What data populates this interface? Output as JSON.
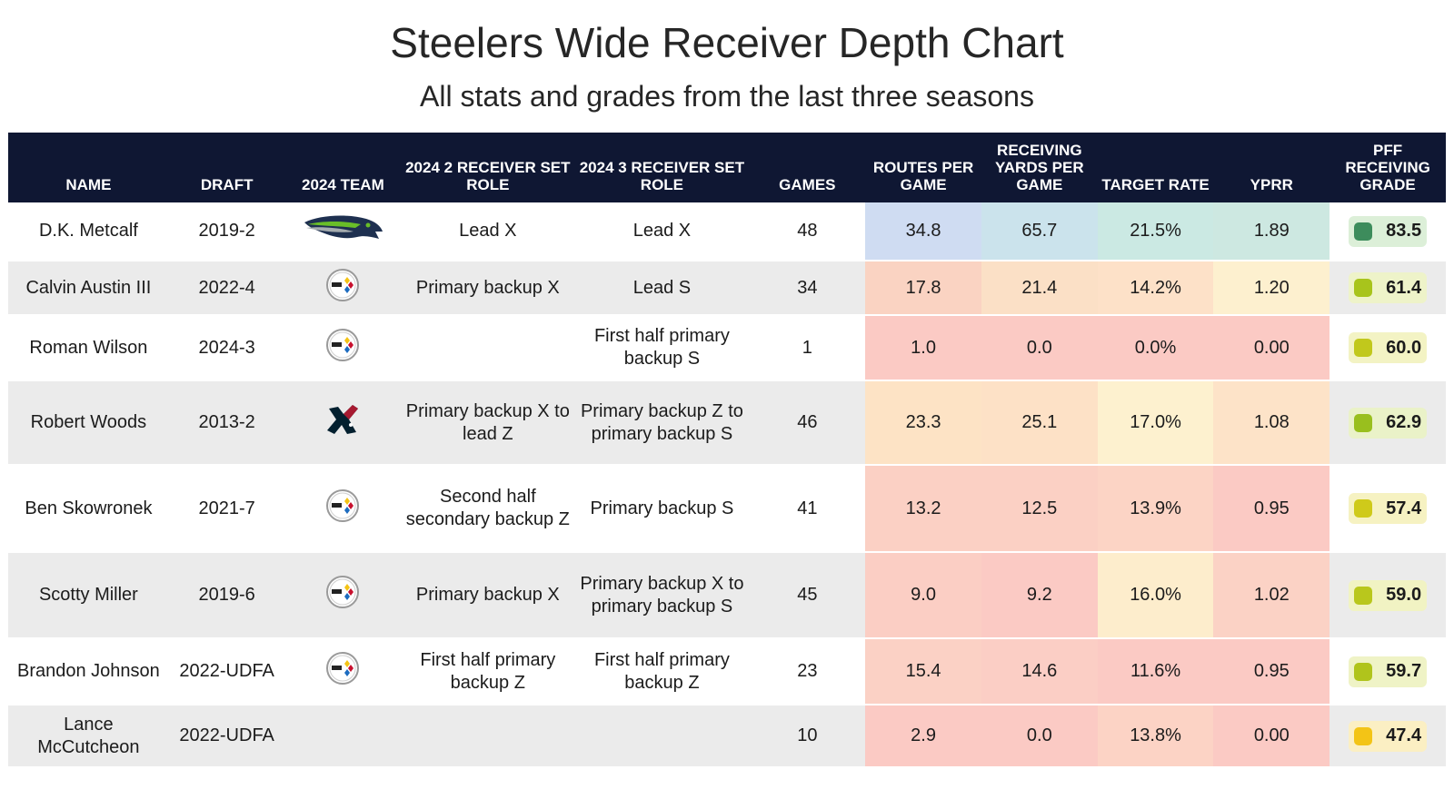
{
  "title": "Steelers Wide Receiver Depth Chart",
  "subtitle": "All stats and grades from the last three seasons",
  "headers": {
    "name": "NAME",
    "draft": "DRAFT",
    "team": "2024 TEAM",
    "role2": "2024 2 RECEIVER SET ROLE",
    "role3": "2024 3 RECEIVER SET ROLE",
    "games": "GAMES",
    "routes": "ROUTES PER GAME",
    "yards": "RECEIVING YARDS PER GAME",
    "target": "TARGET RATE",
    "yprr": "YPRR",
    "grade": "PFF RECEIVING GRADE"
  },
  "chart_data": {
    "type": "table",
    "rows": [
      {
        "name": "D.K. Metcalf",
        "draft": "2019-2",
        "team_icon": "seahawks-logo-icon",
        "role2": "Lead X",
        "role3": "Lead X",
        "games": "48",
        "routes": "34.8",
        "yards": "65.7",
        "target": "21.5%",
        "yprr": "1.89",
        "grade": "83.5"
      },
      {
        "name": "Calvin Austin III",
        "draft": "2022-4",
        "team_icon": "steelers-logo-icon",
        "role2": "Primary backup X",
        "role3": "Lead S",
        "games": "34",
        "routes": "17.8",
        "yards": "21.4",
        "target": "14.2%",
        "yprr": "1.20",
        "grade": "61.4"
      },
      {
        "name": "Roman Wilson",
        "draft": "2024-3",
        "team_icon": "steelers-logo-icon",
        "role2": "",
        "role3": "First half primary backup S",
        "games": "1",
        "routes": "1.0",
        "yards": "0.0",
        "target": "0.0%",
        "yprr": "0.00",
        "grade": "60.0"
      },
      {
        "name": "Robert Woods",
        "draft": "2013-2",
        "team_icon": "texans-logo-icon",
        "role2": "Primary backup X to lead Z",
        "role3": "Primary backup Z to primary backup S",
        "games": "46",
        "routes": "23.3",
        "yards": "25.1",
        "target": "17.0%",
        "yprr": "1.08",
        "grade": "62.9"
      },
      {
        "name": "Ben Skowronek",
        "draft": "2021-7",
        "team_icon": "steelers-logo-icon",
        "role2": "Second half secondary backup Z",
        "role3": "Primary backup S",
        "games": "41",
        "routes": "13.2",
        "yards": "12.5",
        "target": "13.9%",
        "yprr": "0.95",
        "grade": "57.4"
      },
      {
        "name": "Scotty Miller",
        "draft": "2019-6",
        "team_icon": "steelers-logo-icon",
        "role2": "Primary backup X",
        "role3": "Primary backup X to primary backup S",
        "games": "45",
        "routes": "9.0",
        "yards": "9.2",
        "target": "16.0%",
        "yprr": "1.02",
        "grade": "59.0"
      },
      {
        "name": "Brandon Johnson",
        "draft": "2022-UDFA",
        "team_icon": "steelers-logo-icon",
        "role2": "First half primary backup Z",
        "role3": "First half primary backup Z",
        "games": "23",
        "routes": "15.4",
        "yards": "14.6",
        "target": "11.6%",
        "yprr": "0.95",
        "grade": "59.7"
      },
      {
        "name": "Lance McCutcheon",
        "draft": "2022-UDFA",
        "team_icon": "",
        "role2": "",
        "role3": "",
        "games": "10",
        "routes": "2.9",
        "yards": "0.0",
        "target": "13.8%",
        "yprr": "0.00",
        "grade": "47.4"
      }
    ]
  },
  "heat_colors": [
    {
      "routes": "#cfdcf2",
      "yards": "#cbe3ec",
      "target": "#cbe9e3",
      "yprr": "#cde8e1",
      "grade_bg": "#dcefd8",
      "grade_dot": "#3d8c5c"
    },
    {
      "routes": "#fad3c2",
      "yards": "#fbe0c6",
      "target": "#fde1c8",
      "yprr": "#fdf0cf",
      "grade_bg": "#eef3c9",
      "grade_dot": "#a8c41c"
    },
    {
      "routes": "#fbcac4",
      "yards": "#fbcac4",
      "target": "#fbcac4",
      "yprr": "#fbcac4",
      "grade_bg": "#f3f3c4",
      "grade_dot": "#c1c81c"
    },
    {
      "routes": "#fde3c5",
      "yards": "#fde1c6",
      "target": "#fdf1cf",
      "yprr": "#fde3c8",
      "grade_bg": "#eaf2c8",
      "grade_dot": "#99bf1e"
    },
    {
      "routes": "#fbd0c4",
      "yards": "#fbd0c4",
      "target": "#fcd4c5",
      "yprr": "#fbcac4",
      "grade_bg": "#f6f2c2",
      "grade_dot": "#cfca1a"
    },
    {
      "routes": "#fbcec4",
      "yards": "#fbcac4",
      "target": "#fdedcc",
      "yprr": "#fbd2c5",
      "grade_bg": "#f1f3c3",
      "grade_dot": "#b9c71c"
    },
    {
      "routes": "#fbd1c5",
      "yards": "#fbcec5",
      "target": "#fbcac4",
      "yprr": "#fbcac4",
      "grade_bg": "#eff3c6",
      "grade_dot": "#b0c41c"
    },
    {
      "routes": "#fbcac4",
      "yards": "#fbcac4",
      "target": "#fcd3c5",
      "yprr": "#fbcac4",
      "grade_bg": "#fbefc3",
      "grade_dot": "#f3c416"
    }
  ]
}
